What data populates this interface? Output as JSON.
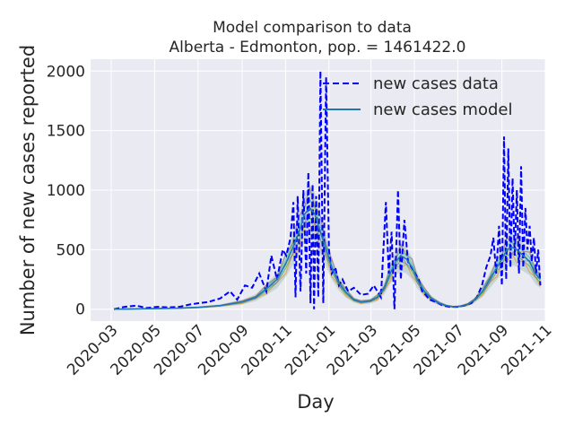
{
  "chart_data": {
    "type": "line",
    "title": "Model comparison to data",
    "subtitle": "Alberta - Edmonton, pop. = 1461422.0",
    "xlabel": "Day",
    "ylabel": "Number of new cases reported",
    "xlim": [
      "2020-02-01",
      "2021-11-01"
    ],
    "ylim": [
      -100,
      2100
    ],
    "xticks": [
      "2020-03",
      "2020-05",
      "2020-07",
      "2020-09",
      "2020-11",
      "2021-01",
      "2021-03",
      "2021-05",
      "2021-07",
      "2021-09",
      "2021-11"
    ],
    "yticks": [
      0,
      500,
      1000,
      1500,
      2000
    ],
    "grid": true,
    "legend_position": "top-right",
    "series": [
      {
        "name": "new cases data",
        "style": "dashed",
        "color": "#0000ff",
        "x": [
          "2020-03-05",
          "2020-03-20",
          "2020-04-05",
          "2020-04-20",
          "2020-05-05",
          "2020-05-20",
          "2020-06-05",
          "2020-06-20",
          "2020-07-01",
          "2020-07-15",
          "2020-08-01",
          "2020-08-15",
          "2020-08-25",
          "2020-09-05",
          "2020-09-15",
          "2020-09-25",
          "2020-10-05",
          "2020-10-12",
          "2020-10-20",
          "2020-10-28",
          "2020-11-02",
          "2020-11-08",
          "2020-11-12",
          "2020-11-15",
          "2020-11-18",
          "2020-11-22",
          "2020-11-26",
          "2020-11-30",
          "2020-12-03",
          "2020-12-06",
          "2020-12-09",
          "2020-12-11",
          "2020-12-14",
          "2020-12-17",
          "2020-12-20",
          "2020-12-24",
          "2020-12-28",
          "2021-01-01",
          "2021-01-05",
          "2021-01-10",
          "2021-01-15",
          "2021-01-20",
          "2021-01-28",
          "2021-02-05",
          "2021-02-15",
          "2021-02-25",
          "2021-03-05",
          "2021-03-15",
          "2021-03-22",
          "2021-03-26",
          "2021-03-30",
          "2021-04-03",
          "2021-04-08",
          "2021-04-12",
          "2021-04-17",
          "2021-04-22",
          "2021-04-27",
          "2021-05-02",
          "2021-05-07",
          "2021-05-12",
          "2021-05-17",
          "2021-05-22",
          "2021-06-01",
          "2021-06-10",
          "2021-06-20",
          "2021-07-01",
          "2021-07-10",
          "2021-07-20",
          "2021-07-28",
          "2021-08-04",
          "2021-08-10",
          "2021-08-16",
          "2021-08-20",
          "2021-08-24",
          "2021-08-28",
          "2021-09-01",
          "2021-09-04",
          "2021-09-07",
          "2021-09-10",
          "2021-09-13",
          "2021-09-16",
          "2021-09-19",
          "2021-09-22",
          "2021-09-25",
          "2021-09-28",
          "2021-10-01",
          "2021-10-04",
          "2021-10-07",
          "2021-10-10",
          "2021-10-13",
          "2021-10-16",
          "2021-10-19",
          "2021-10-22",
          "2021-10-25"
        ],
        "y": [
          0,
          20,
          30,
          10,
          20,
          15,
          20,
          40,
          50,
          60,
          90,
          150,
          80,
          200,
          180,
          300,
          150,
          450,
          250,
          500,
          450,
          600,
          900,
          100,
          950,
          150,
          1000,
          300,
          1150,
          50,
          1050,
          0,
          950,
          100,
          2000,
          50,
          1950,
          500,
          300,
          350,
          200,
          250,
          150,
          180,
          120,
          130,
          200,
          100,
          900,
          300,
          650,
          0,
          1000,
          250,
          750,
          400,
          350,
          300,
          250,
          150,
          120,
          80,
          60,
          30,
          20,
          20,
          30,
          50,
          100,
          200,
          350,
          450,
          600,
          300,
          700,
          200,
          1450,
          250,
          1350,
          350,
          1100,
          450,
          1000,
          300,
          1200,
          350,
          850,
          500,
          700,
          400,
          600,
          300,
          500,
          200
        ]
      },
      {
        "name": "new cases model",
        "style": "solid",
        "color": "#1f77b4",
        "x": [
          "2020-03-05",
          "2020-04-01",
          "2020-05-01",
          "2020-06-01",
          "2020-07-01",
          "2020-08-01",
          "2020-09-01",
          "2020-09-20",
          "2020-10-05",
          "2020-10-20",
          "2020-11-01",
          "2020-11-10",
          "2020-11-20",
          "2020-11-28",
          "2020-12-05",
          "2020-12-12",
          "2020-12-20",
          "2020-12-28",
          "2021-01-05",
          "2021-01-15",
          "2021-01-25",
          "2021-02-05",
          "2021-02-15",
          "2021-02-28",
          "2021-03-10",
          "2021-03-20",
          "2021-03-28",
          "2021-04-05",
          "2021-04-12",
          "2021-04-20",
          "2021-04-28",
          "2021-05-05",
          "2021-05-15",
          "2021-05-25",
          "2021-06-05",
          "2021-06-15",
          "2021-06-25",
          "2021-07-05",
          "2021-07-15",
          "2021-07-25",
          "2021-08-05",
          "2021-08-15",
          "2021-08-25",
          "2021-09-01",
          "2021-09-08",
          "2021-09-15",
          "2021-09-22",
          "2021-10-01",
          "2021-10-10",
          "2021-10-18",
          "2021-10-25"
        ],
        "y": [
          0,
          2,
          5,
          8,
          15,
          30,
          60,
          100,
          170,
          250,
          380,
          500,
          650,
          800,
          850,
          800,
          650,
          500,
          350,
          220,
          140,
          80,
          60,
          70,
          100,
          180,
          300,
          400,
          450,
          420,
          350,
          250,
          150,
          90,
          50,
          30,
          20,
          25,
          40,
          80,
          150,
          250,
          350,
          420,
          500,
          520,
          500,
          450,
          400,
          300,
          250
        ]
      }
    ],
    "model_band_colors": [
      "#ff7f0e",
      "#2ca02c",
      "#9467bd",
      "#bcbd22",
      "#17becf",
      "#8c564b"
    ]
  }
}
